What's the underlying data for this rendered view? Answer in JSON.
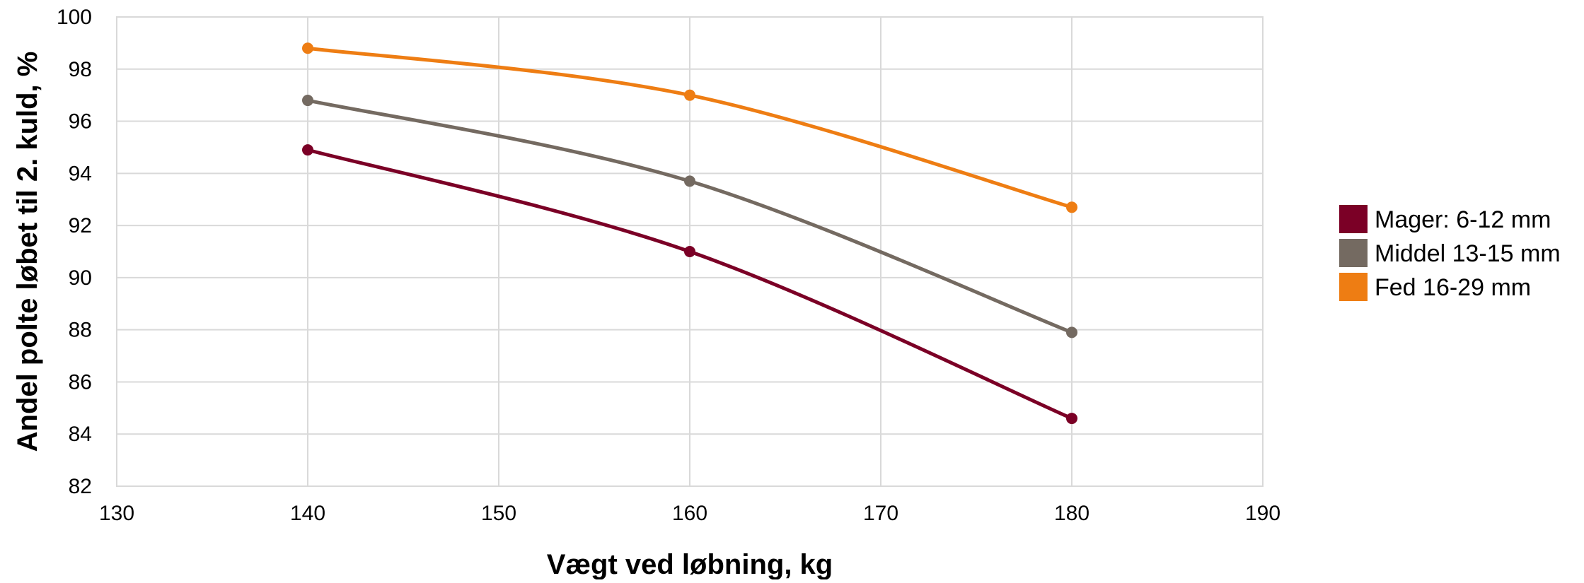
{
  "chart_data": {
    "type": "line",
    "xlabel": "Vægt ved løbning, kg",
    "ylabel": "Andel polte løbet til 2. kuld, %",
    "xlim": [
      130,
      190
    ],
    "ylim": [
      82,
      100
    ],
    "x_ticks": [
      130,
      140,
      150,
      160,
      170,
      180,
      190
    ],
    "y_ticks": [
      82,
      84,
      86,
      88,
      90,
      92,
      94,
      96,
      98,
      100
    ],
    "grid": true,
    "legend_position": "right",
    "x": [
      140,
      160,
      180
    ],
    "series": [
      {
        "name": "Mager: 6-12 mm",
        "values": [
          94.9,
          91.0,
          84.6
        ],
        "color": "#7b0026"
      },
      {
        "name": "Middel 13-15 mm",
        "values": [
          96.8,
          93.7,
          87.9
        ],
        "color": "#746a61"
      },
      {
        "name": "Fed 16-29 mm",
        "values": [
          98.8,
          97.0,
          92.7
        ],
        "color": "#ee7d13"
      }
    ]
  }
}
